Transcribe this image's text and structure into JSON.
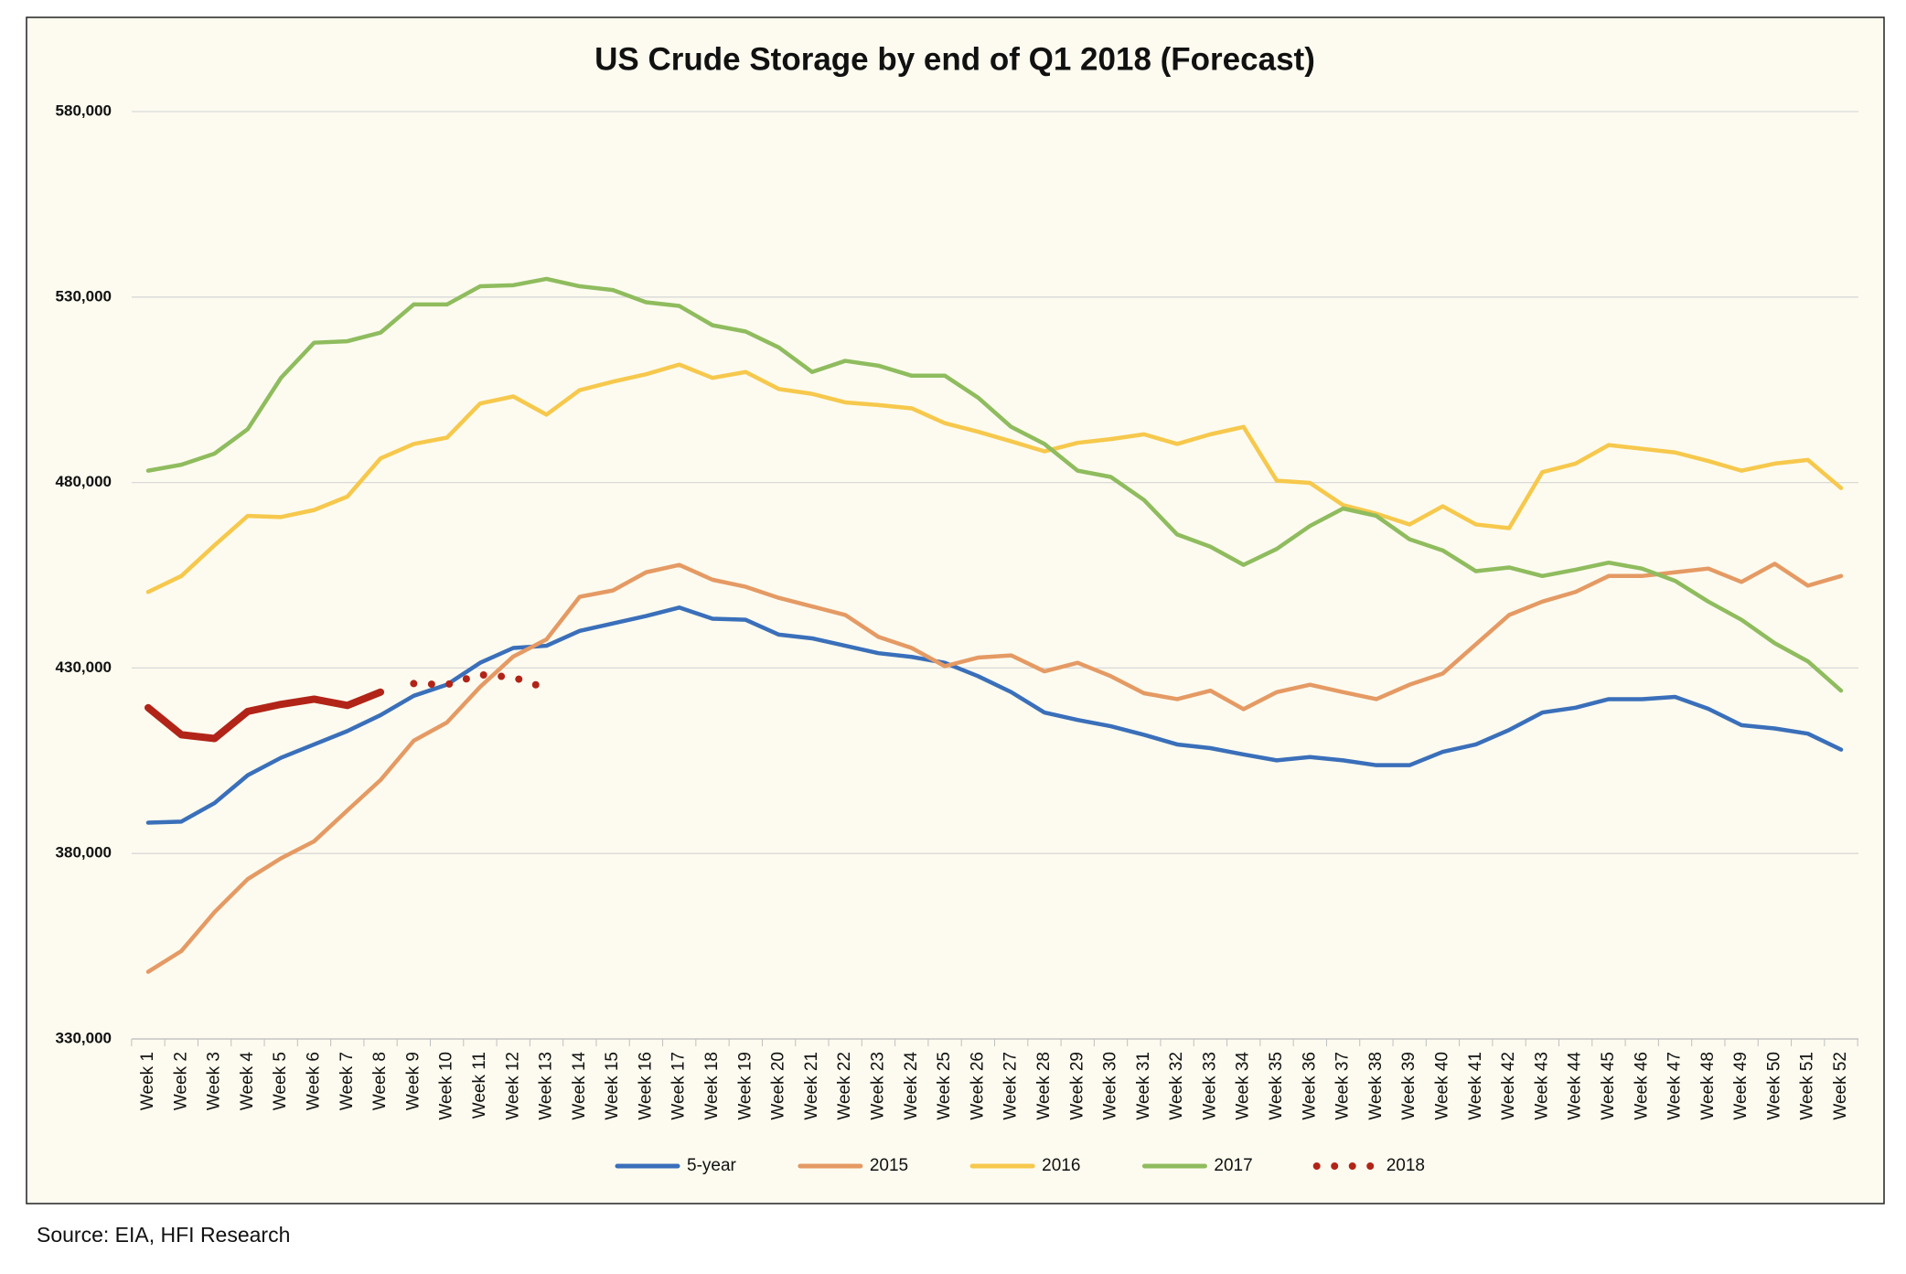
{
  "chart_data": {
    "type": "line",
    "title": "US Crude Storage by end of Q1 2018 (Forecast)",
    "source": "Source: EIA, HFI Research",
    "categories": [
      "Week 1",
      "Week 2",
      "Week 3",
      "Week 4",
      "Week 5",
      "Week 6",
      "Week 7",
      "Week 8",
      "Week 9",
      "Week 10",
      "Week 11",
      "Week 12",
      "Week 13",
      "Week 14",
      "Week 15",
      "Week 16",
      "Week 17",
      "Week 18",
      "Week 19",
      "Week 20",
      "Week 21",
      "Week 22",
      "Week 23",
      "Week 24",
      "Week 25",
      "Week 26",
      "Week 27",
      "Week 28",
      "Week 29",
      "Week 30",
      "Week 31",
      "Week 32",
      "Week 33",
      "Week 34",
      "Week 35",
      "Week 36",
      "Week 37",
      "Week 38",
      "Week 39",
      "Week 40",
      "Week 41",
      "Week 42",
      "Week 43",
      "Week 44",
      "Week 45",
      "Week 46",
      "Week 47",
      "Week 48",
      "Week 49",
      "Week 50",
      "Week 51",
      "Week 52"
    ],
    "ylim": [
      330000,
      580000
    ],
    "yticks": [
      {
        "value": 330000,
        "label": "330,000"
      },
      {
        "value": 380000,
        "label": "380,000"
      },
      {
        "value": 430000,
        "label": "430,000"
      },
      {
        "value": 480000,
        "label": "480,000"
      },
      {
        "value": 530000,
        "label": "530,000"
      },
      {
        "value": 580000,
        "label": "580,000"
      }
    ],
    "grid": true,
    "legend": "bottom",
    "dotted_from": "Week 9",
    "series": [
      {
        "name": "5-year",
        "color": "#3a6fba",
        "values": [
          388300,
          388600,
          393600,
          401100,
          405800,
          409400,
          413000,
          417300,
          422500,
          425500,
          431400,
          435400,
          436000,
          440000,
          442000,
          444000,
          446300,
          443300,
          443000,
          439000,
          438000,
          436000,
          434000,
          433000,
          431400,
          427800,
          423500,
          418000,
          416000,
          414300,
          412000,
          409400,
          408400,
          406700,
          405100,
          406000,
          405100,
          403800,
          403800,
          407400,
          409400,
          413300,
          418000,
          419300,
          421600,
          421600,
          422200,
          419000,
          414600,
          413700,
          412300,
          408000
        ]
      },
      {
        "name": "2015",
        "color": "#e59a64",
        "values": [
          348100,
          353700,
          364200,
          373100,
          378700,
          383300,
          391600,
          399800,
          410400,
          415300,
          424900,
          433100,
          437700,
          449200,
          450900,
          455800,
          457800,
          453800,
          451900,
          448900,
          446600,
          444300,
          438400,
          435400,
          430500,
          432800,
          433400,
          429100,
          431400,
          427800,
          423200,
          421600,
          423900,
          418900,
          423500,
          425500,
          423500,
          421600,
          425500,
          428500,
          436400,
          444300,
          447900,
          450500,
          454800,
          454800,
          455800,
          456800,
          453200,
          458100,
          452200,
          454800
        ]
      },
      {
        "name": "2016",
        "color": "#f6c84c",
        "values": [
          450500,
          454800,
          463100,
          471000,
          470700,
          472600,
          476200,
          486500,
          490400,
          492100,
          501300,
          503200,
          498300,
          504900,
          507200,
          509200,
          511800,
          508200,
          509800,
          505200,
          503900,
          501600,
          500900,
          500000,
          496000,
          493700,
          491100,
          488400,
          490700,
          491700,
          493000,
          490400,
          493000,
          495000,
          480500,
          479900,
          473900,
          471600,
          468700,
          473600,
          468700,
          467700,
          482800,
          485100,
          490100,
          489100,
          488100,
          485800,
          483200,
          485100,
          486100,
          478500
        ]
      },
      {
        "name": "2017",
        "color": "#8fbc5e",
        "values": [
          483200,
          484800,
          487800,
          494400,
          508200,
          517700,
          518100,
          520400,
          528000,
          528000,
          532900,
          533200,
          534900,
          532900,
          531900,
          528600,
          527600,
          522400,
          520700,
          516400,
          509800,
          512800,
          511500,
          508800,
          508800,
          502900,
          495000,
          490400,
          483200,
          481500,
          475300,
          466000,
          462700,
          457800,
          462100,
          468300,
          473000,
          471000,
          464700,
          461700,
          456100,
          457100,
          454800,
          456500,
          458400,
          456800,
          453500,
          447900,
          443000,
          436700,
          431800,
          423900
        ]
      },
      {
        "name": "2018",
        "color": "#b22418",
        "values": [
          419300,
          412000,
          411000,
          418300,
          420200,
          421600,
          419900,
          423500,
          425800,
          425500,
          428200,
          427500,
          424500,
          null,
          null,
          null,
          null,
          null,
          null,
          null,
          null,
          null,
          null,
          null,
          null,
          null,
          null,
          null,
          null,
          null,
          null,
          null,
          null,
          null,
          null,
          null,
          null,
          null,
          null,
          null,
          null,
          null,
          null,
          null,
          null,
          null,
          null,
          null,
          null,
          null,
          null,
          null
        ]
      }
    ]
  }
}
